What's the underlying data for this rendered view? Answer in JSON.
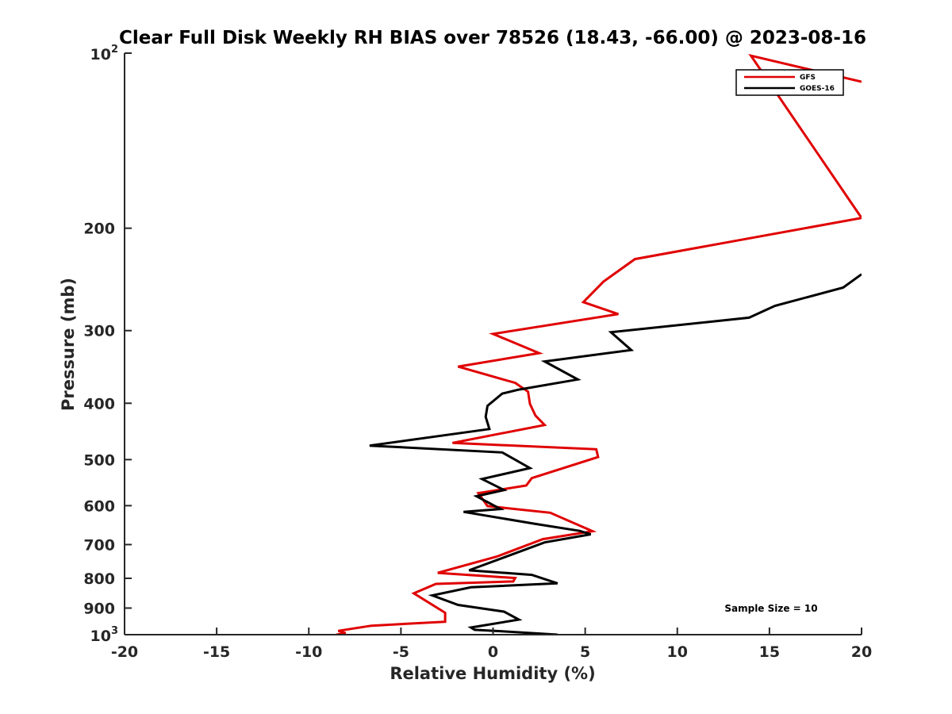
{
  "chart_data": {
    "type": "line",
    "title": "Clear Full Disk Weekly RH BIAS over 78526 (18.43, -66.00) @ 2023-08-16",
    "xlabel": "Relative Humidity (%)",
    "ylabel": "Pressure (mb)",
    "xlim": [
      -20,
      20
    ],
    "ylim": [
      100,
      1000
    ],
    "y_scale": "log",
    "y_reversed": true,
    "grid": false,
    "legend_position": "top-right",
    "x_ticks": [
      -20,
      -15,
      -10,
      -5,
      0,
      5,
      10,
      15,
      20
    ],
    "x_tick_labels": [
      "-20",
      "-15",
      "-10",
      "-5",
      "0",
      "5",
      "10",
      "15",
      "20"
    ],
    "y_ticks": [
      {
        "value": 100,
        "base": "10",
        "exp": "2"
      },
      {
        "value": 200,
        "base": "200",
        "exp": ""
      },
      {
        "value": 300,
        "base": "300",
        "exp": ""
      },
      {
        "value": 400,
        "base": "400",
        "exp": ""
      },
      {
        "value": 500,
        "base": "500",
        "exp": ""
      },
      {
        "value": 600,
        "base": "600",
        "exp": ""
      },
      {
        "value": 700,
        "base": "700",
        "exp": ""
      },
      {
        "value": 800,
        "base": "800",
        "exp": ""
      },
      {
        "value": 900,
        "base": "900",
        "exp": ""
      },
      {
        "value": 1000,
        "base": "10",
        "exp": "3"
      }
    ],
    "annotation": "Sample Size = 10",
    "series": [
      {
        "name": "GFS",
        "color": "#e00000",
        "points": [
          [
            20,
            112
          ],
          [
            14,
            101
          ],
          [
            20,
            192
          ],
          [
            7.7,
            226
          ],
          [
            6,
            247
          ],
          [
            4.9,
            268
          ],
          [
            6.8,
            281
          ],
          [
            0,
            304
          ],
          [
            2.5,
            328
          ],
          [
            -1.9,
            346
          ],
          [
            1.2,
            369
          ],
          [
            1.9,
            382
          ],
          [
            2,
            401
          ],
          [
            2.3,
            420
          ],
          [
            2.8,
            436
          ],
          [
            -2.2,
            468
          ],
          [
            5.6,
            480
          ],
          [
            5.7,
            495
          ],
          [
            2.1,
            538
          ],
          [
            1.8,
            554
          ],
          [
            -0.8,
            571
          ],
          [
            -0.3,
            601
          ],
          [
            3.1,
            617
          ],
          [
            5.4,
            664
          ],
          [
            2.7,
            685
          ],
          [
            0.2,
            734
          ],
          [
            -3,
            783
          ],
          [
            1.2,
            799
          ],
          [
            1.1,
            810
          ],
          [
            -3.1,
            818
          ],
          [
            -4.3,
            849
          ],
          [
            -2.6,
            917
          ],
          [
            -2.6,
            950
          ],
          [
            -6.6,
            965
          ],
          [
            -8.4,
            985
          ],
          [
            -8,
            994
          ],
          [
            -8.5,
            1000
          ]
        ]
      },
      {
        "name": "GOES-16",
        "color": "#000000",
        "points": [
          [
            20,
            240
          ],
          [
            19,
            253
          ],
          [
            15.3,
            272
          ],
          [
            13.9,
            285
          ],
          [
            6.4,
            302
          ],
          [
            7.5,
            324
          ],
          [
            2.8,
            339
          ],
          [
            4.6,
            364
          ],
          [
            1.4,
            379
          ],
          [
            0.5,
            385
          ],
          [
            -0.3,
            404
          ],
          [
            -0.4,
            422
          ],
          [
            -0.2,
            443
          ],
          [
            -6.7,
            473
          ],
          [
            0.5,
            486
          ],
          [
            2,
            517
          ],
          [
            -0.6,
            540
          ],
          [
            0.6,
            564
          ],
          [
            -0.9,
            578
          ],
          [
            0.4,
            608
          ],
          [
            -1.6,
            615
          ],
          [
            2.3,
            645
          ],
          [
            4.7,
            663
          ],
          [
            5.3,
            672
          ],
          [
            2.8,
            694
          ],
          [
            -1.3,
            775
          ],
          [
            2.1,
            789
          ],
          [
            3.5,
            816
          ],
          [
            -1.2,
            829
          ],
          [
            -3.3,
            856
          ],
          [
            -1.9,
            889
          ],
          [
            0.6,
            913
          ],
          [
            1.4,
            942
          ],
          [
            -1.2,
            972
          ],
          [
            -1,
            981
          ],
          [
            0.5,
            987
          ],
          [
            3.5,
            1000
          ]
        ]
      }
    ]
  }
}
